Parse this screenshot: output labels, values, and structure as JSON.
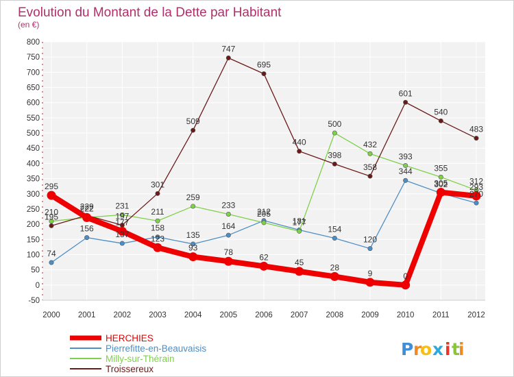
{
  "chart_data": {
    "type": "line",
    "title": "Evolution du Montant de la Dette par Habitant",
    "subtitle": "(en €)",
    "x": [
      "2000",
      "2001",
      "2002",
      "2003",
      "2004",
      "2005",
      "2006",
      "2007",
      "2008",
      "2009",
      "2010",
      "2011",
      "2012"
    ],
    "ylim": [
      -50,
      800
    ],
    "yticks": [
      -50,
      0,
      50,
      100,
      150,
      200,
      250,
      300,
      350,
      400,
      450,
      500,
      550,
      600,
      650,
      700,
      750,
      800
    ],
    "grid": true,
    "legend_position": "bottom-left",
    "series": [
      {
        "name": "HERCHIES",
        "color": "#ee0000",
        "highlight": true,
        "values": [
          295,
          222,
          177,
          123,
          93,
          78,
          62,
          45,
          28,
          9,
          0,
          305,
          293
        ]
      },
      {
        "name": "Pierrefitte-en-Beauvaisis",
        "color": "#4d8ec5",
        "values": [
          74,
          156,
          137,
          158,
          135,
          164,
          212,
          181,
          154,
          120,
          344,
          302,
          270
        ]
      },
      {
        "name": "Milly-sur-Thérain",
        "color": "#7fd04a",
        "values": [
          210,
          222,
          231,
          211,
          259,
          233,
          205,
          177,
          500,
          432,
          393,
          355,
          312
        ]
      },
      {
        "name": "Troissereux",
        "color": "#6b1a1a",
        "values": [
          195,
          229,
          197,
          301,
          509,
          747,
          695,
          440,
          398,
          358,
          601,
          540,
          483
        ]
      }
    ]
  },
  "brand": {
    "letters": [
      "P",
      "r",
      "o",
      "x",
      "i",
      "t",
      "i"
    ],
    "colors": [
      "#3d8fd8",
      "#f08a1c",
      "#f5c010",
      "#2fa8dc",
      "#e8342a",
      "#8cc43a",
      "#f08a1c"
    ]
  }
}
